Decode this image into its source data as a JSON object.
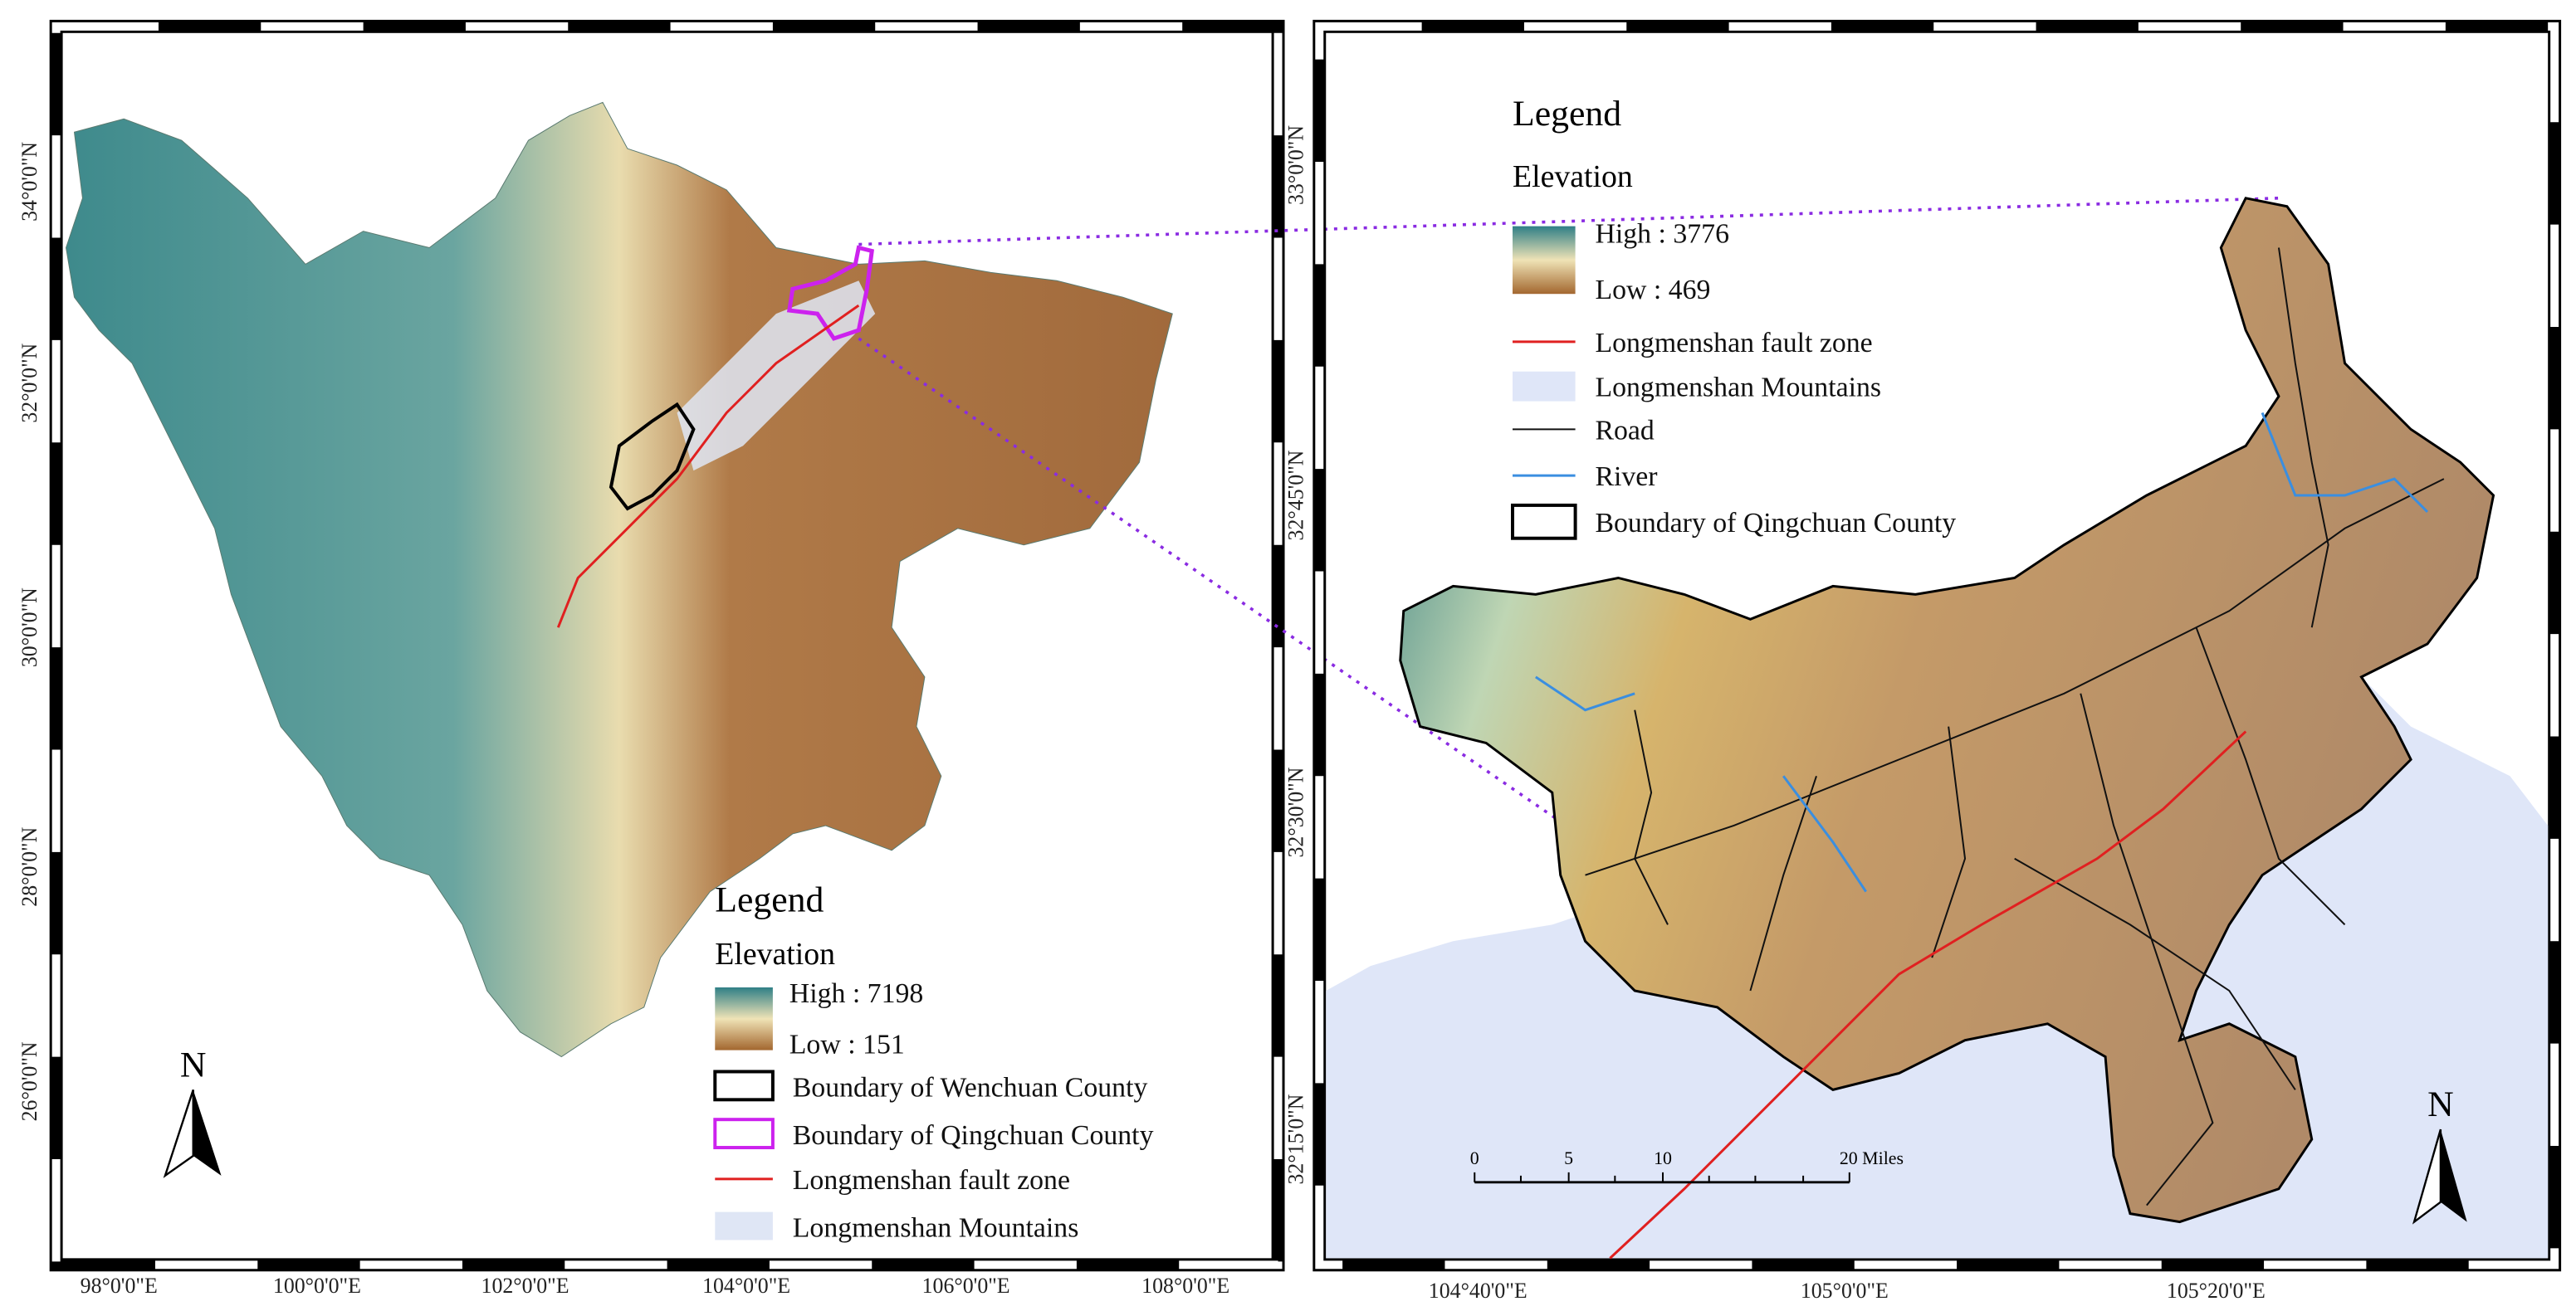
{
  "left_map": {
    "lat_labels": [
      "34°0'0\"N",
      "32°0'0\"N",
      "30°0'0\"N",
      "28°0'0\"N",
      "26°0'0\"N"
    ],
    "lon_labels": [
      "98°0'0\"E",
      "100°0'0\"E",
      "102°0'0\"E",
      "104°0'0\"E",
      "106°0'0\"E",
      "108°0'0\"E"
    ],
    "legend": {
      "title": "Legend",
      "elevation_title": "Elevation",
      "high": "High : 7198",
      "low": "Low : 151",
      "items": [
        "Boundary of Wenchuan County",
        "Boundary of Qingchuan County",
        "Longmenshan fault zone",
        "Longmenshan Mountains"
      ]
    },
    "north": "N"
  },
  "right_map": {
    "lat_labels": [
      "33°0'0\"N",
      "32°45'0\"N",
      "32°30'0\"N",
      "32°15'0\"N"
    ],
    "lon_labels": [
      "104°40'0\"E",
      "105°0'0\"E",
      "105°20'0\"E"
    ],
    "legend": {
      "title": "Legend",
      "elevation_title": "Elevation",
      "high": "High : 3776",
      "low": "Low : 469",
      "items": [
        "Longmenshan fault zone",
        "Longmenshan Mountains",
        "Road",
        "River",
        "Boundary of Qingchuan County"
      ]
    },
    "scale_labels": [
      "0",
      "5",
      "10",
      "20 Miles"
    ],
    "north": "N"
  }
}
